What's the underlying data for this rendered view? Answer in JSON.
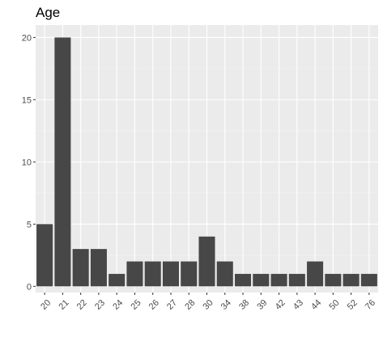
{
  "chart_data": {
    "type": "bar",
    "title": "Age",
    "xlabel": "",
    "ylabel": "",
    "categories": [
      "20",
      "21",
      "22",
      "23",
      "24",
      "25",
      "26",
      "27",
      "28",
      "30",
      "34",
      "38",
      "39",
      "42",
      "43",
      "44",
      "50",
      "52",
      "76"
    ],
    "values": [
      5,
      20,
      3,
      3,
      1,
      2,
      2,
      2,
      2,
      4,
      2,
      1,
      1,
      1,
      1,
      2,
      1,
      1,
      1
    ],
    "ylim": [
      -0.5,
      21
    ],
    "y_ticks": [
      0,
      5,
      10,
      15,
      20
    ],
    "grid": true,
    "legend": "none",
    "colors": {
      "bar": "#474747",
      "panel": "#ebebeb",
      "grid_major": "#ffffff",
      "grid_minor": "#f5f5f5",
      "tick": "#333333"
    }
  }
}
